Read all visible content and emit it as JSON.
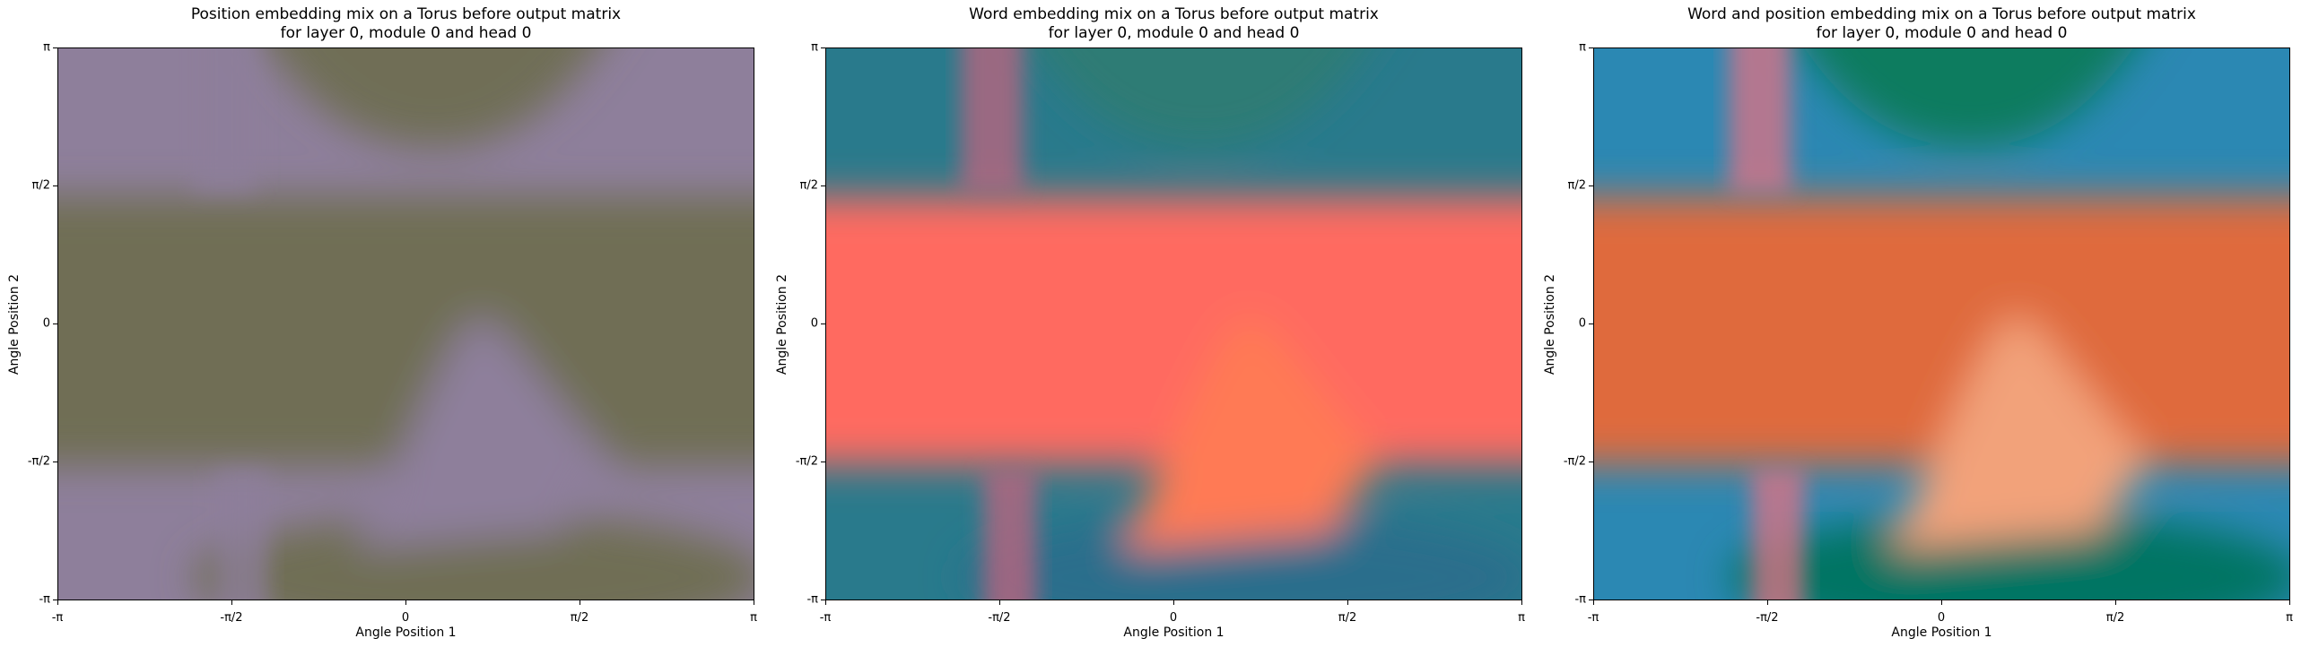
{
  "chart_data": [
    {
      "type": "heatmap",
      "title_line1": "Position embedding mix on a Torus before output matrix",
      "title_line2": "for layer 0, module 0 and head 0",
      "xlabel": "Angle Position 1",
      "ylabel": "Angle Position 2",
      "xticks": [
        "-π",
        "-π/2",
        "0",
        "π/2",
        "π"
      ],
      "yticks": [
        "π",
        "π/2",
        "0",
        "-π/2",
        "-π"
      ],
      "xlim": [
        -3.1416,
        3.1416
      ],
      "ylim": [
        -3.1416,
        3.1416
      ],
      "colors": {
        "bg": "#8e7f9b",
        "a": "#6f6e55",
        "b": "#8e7f9b",
        "c": "#6f6e55",
        "d": "#8e7f9b",
        "e": "#706e56"
      }
    },
    {
      "type": "heatmap",
      "title_line1": "Word embedding mix on a Torus before output matrix",
      "title_line2": "for layer 0, module 0 and head 0",
      "xlabel": "Angle Position 1",
      "ylabel": "Angle Position 2",
      "xticks": [
        "-π",
        "-π/2",
        "0",
        "π/2",
        "π"
      ],
      "yticks": [
        "π",
        "π/2",
        "0",
        "-π/2",
        "-π"
      ],
      "xlim": [
        -3.1416,
        3.1416
      ],
      "ylim": [
        -3.1416,
        3.1416
      ],
      "colors": {
        "bg": "#297a8c",
        "a": "#ff6b60",
        "b": "#ff7a55",
        "c": "#2a6e8c",
        "d": "#c0647e",
        "e": "#2f7c74"
      }
    },
    {
      "type": "heatmap",
      "title_line1": "Word and position embedding mix on a Torus before output matrix",
      "title_line2": "for layer 0, module 0 and head 0",
      "xlabel": "Angle Position 1",
      "ylabel": "Angle Position 2",
      "xticks": [
        "-π",
        "-π/2",
        "0",
        "π/2",
        "π"
      ],
      "yticks": [
        "π",
        "π/2",
        "0",
        "-π/2",
        "-π"
      ],
      "xlim": [
        -3.1416,
        3.1416
      ],
      "ylim": [
        -3.1416,
        3.1416
      ],
      "colors": {
        "bg": "#2b88b3",
        "a": "#df6a3e",
        "b": "#f2a27a",
        "c": "#067563",
        "d": "#e07184",
        "e": "#0b7b5f"
      }
    }
  ]
}
